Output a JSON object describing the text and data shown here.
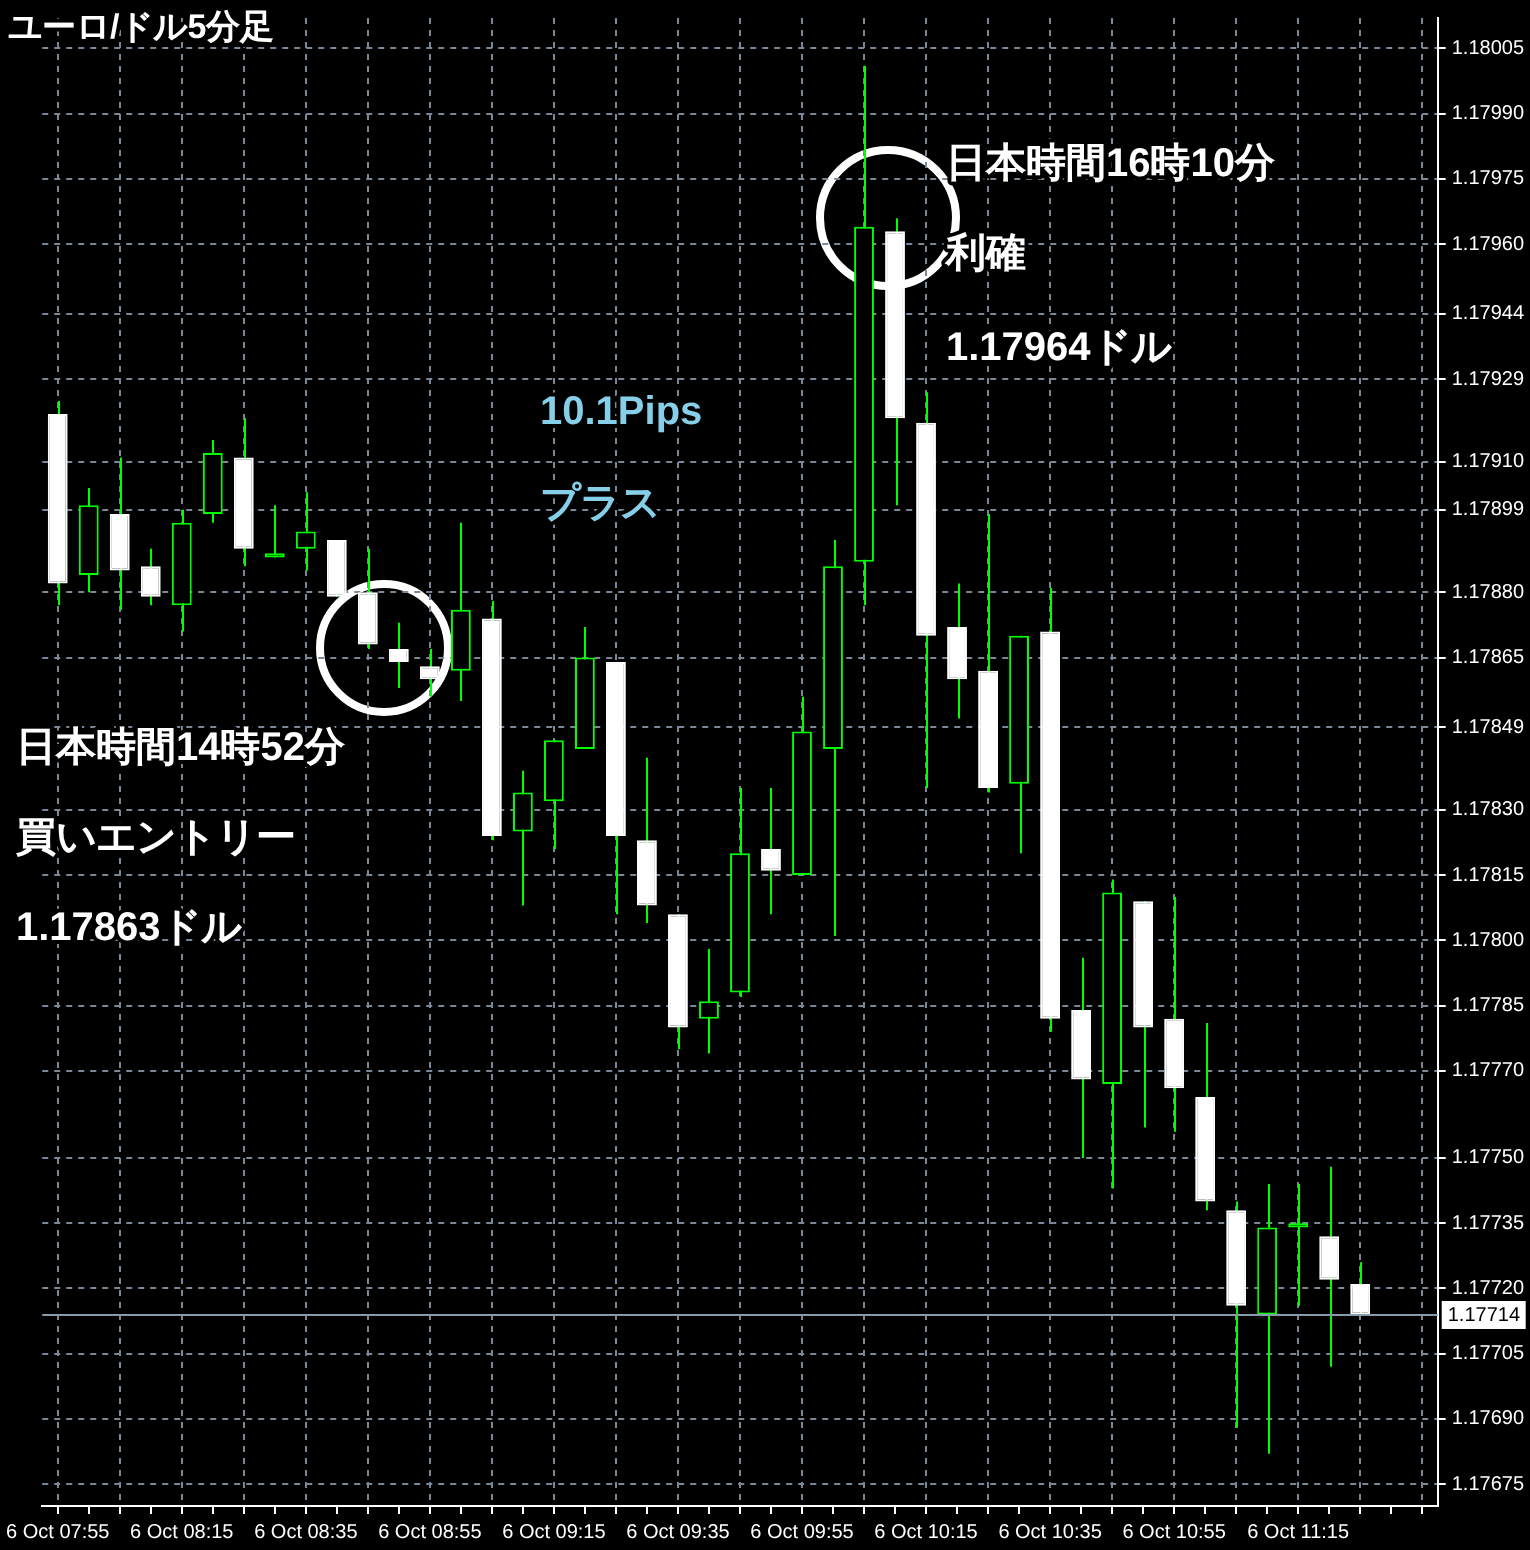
{
  "chart_data": {
    "type": "candlestick",
    "title": "ユーロ/ドル5分足",
    "categories": [
      "6 Oct 07:55",
      null,
      null,
      null,
      "6 Oct 08:15",
      null,
      null,
      null,
      "6 Oct 08:35",
      null,
      null,
      null,
      "6 Oct 08:55",
      null,
      null,
      null,
      "6 Oct 09:15",
      null,
      null,
      null,
      "6 Oct 09:35",
      null,
      null,
      null,
      "6 Oct 09:55",
      null,
      null,
      null,
      "6 Oct 10:15",
      null,
      null,
      null,
      "6 Oct 10:35",
      null,
      null,
      null,
      "6 Oct 10:55",
      null,
      null,
      null,
      "6 Oct 11:15",
      null,
      null
    ],
    "ohlc": [
      [
        1.17921,
        1.17924,
        1.17877,
        1.17882
      ],
      [
        1.17884,
        1.17904,
        1.1788,
        1.179
      ],
      [
        1.17898,
        1.17911,
        1.17876,
        1.17885
      ],
      [
        1.17886,
        1.1789,
        1.17877,
        1.17879
      ],
      [
        1.17877,
        1.17899,
        1.17871,
        1.17896
      ],
      [
        1.17898,
        1.17915,
        1.17896,
        1.17912
      ],
      [
        1.17911,
        1.1792,
        1.17886,
        1.1789
      ],
      [
        1.17888,
        1.179,
        1.17888,
        1.17889
      ],
      [
        1.1789,
        1.17903,
        1.17885,
        1.17894
      ],
      [
        1.17892,
        1.17892,
        1.17879,
        1.17879
      ],
      [
        1.1788,
        1.1789,
        1.17867,
        1.17868
      ],
      [
        1.17867,
        1.17873,
        1.17858,
        1.17864
      ],
      [
        1.17863,
        1.17867,
        1.17856,
        1.1786
      ],
      [
        1.17862,
        1.17896,
        1.17855,
        1.17876
      ],
      [
        1.17874,
        1.17878,
        1.17823,
        1.17824
      ],
      [
        1.17825,
        1.17839,
        1.17808,
        1.17834
      ],
      [
        1.17832,
        1.17846,
        1.17821,
        1.17846
      ],
      [
        1.17844,
        1.17872,
        1.17844,
        1.17865
      ],
      [
        1.17864,
        1.17864,
        1.17806,
        1.17824
      ],
      [
        1.17823,
        1.17842,
        1.17804,
        1.17808
      ],
      [
        1.17806,
        1.17806,
        1.17775,
        1.1778
      ],
      [
        1.17782,
        1.17798,
        1.17774,
        1.17786
      ],
      [
        1.17788,
        1.17835,
        1.17787,
        1.1782
      ],
      [
        1.17821,
        1.17835,
        1.17806,
        1.17816
      ],
      [
        1.17815,
        1.17856,
        1.17815,
        1.17848
      ],
      [
        1.17844,
        1.17892,
        1.17801,
        1.17886
      ],
      [
        1.17887,
        1.18001,
        1.17877,
        1.17964
      ],
      [
        1.17963,
        1.17966,
        1.179,
        1.1792
      ],
      [
        1.17919,
        1.17926,
        1.17835,
        1.1787
      ],
      [
        1.17872,
        1.17882,
        1.17851,
        1.1786
      ],
      [
        1.17862,
        1.17898,
        1.17834,
        1.17835
      ],
      [
        1.17836,
        1.1787,
        1.1782,
        1.1787
      ],
      [
        1.17871,
        1.17881,
        1.17779,
        1.17782
      ],
      [
        1.17784,
        1.17796,
        1.1775,
        1.17768
      ],
      [
        1.17767,
        1.17814,
        1.17743,
        1.17811
      ],
      [
        1.17809,
        1.17809,
        1.17757,
        1.1778
      ],
      [
        1.17782,
        1.1781,
        1.17756,
        1.17766
      ],
      [
        1.17764,
        1.17781,
        1.17738,
        1.1774
      ],
      [
        1.17738,
        1.1774,
        1.17688,
        1.17716
      ],
      [
        1.17714,
        1.17744,
        1.17682,
        1.17734
      ],
      [
        1.17734,
        1.17744,
        1.17716,
        1.17735
      ],
      [
        1.17732,
        1.17748,
        1.17702,
        1.17722
      ],
      [
        1.17721,
        1.17726,
        1.17714,
        1.17714
      ]
    ],
    "color": "#00ff00",
    "colors": [
      "#ffffff",
      "#00ff00",
      "#ffffff",
      "#ffffff",
      "#00ff00",
      "#00ff00",
      "#ffffff",
      "#00ff00",
      "#00ff00",
      "#ffffff",
      "#ffffff",
      "#ffffff",
      "#ffffff",
      "#00ff00",
      "#ffffff",
      "#00ff00",
      "#00ff00",
      "#00ff00",
      "#ffffff",
      "#ffffff",
      "#ffffff",
      "#00ff00",
      "#00ff00",
      "#ffffff",
      "#00ff00",
      "#00ff00",
      "#00ff00",
      "#ffffff",
      "#ffffff",
      "#ffffff",
      "#ffffff",
      "#00ff00",
      "#ffffff",
      "#ffffff",
      "#00ff00",
      "#ffffff",
      "#ffffff",
      "#ffffff",
      "#ffffff",
      "#00ff00",
      "#00ff00",
      "#ffffff",
      "#ffffff"
    ],
    "ylim": [
      1.1767,
      1.18012
    ],
    "yticks": [
      {
        "value": 1.18005,
        "label": "1.18005"
      },
      {
        "value": 1.1799,
        "label": "1.17990"
      },
      {
        "value": 1.17975,
        "label": "1.17975"
      },
      {
        "value": 1.1796,
        "label": "1.17960"
      },
      {
        "value": 1.17944,
        "label": "1.17944"
      },
      {
        "value": 1.17929,
        "label": "1.17929"
      },
      {
        "value": 1.1791,
        "label": "1.17910"
      },
      {
        "value": 1.17899,
        "label": "1.17899"
      },
      {
        "value": 1.1788,
        "label": "1.17880"
      },
      {
        "value": 1.17865,
        "label": "1.17865"
      },
      {
        "value": 1.17849,
        "label": "1.17849"
      },
      {
        "value": 1.1783,
        "label": "1.17830"
      },
      {
        "value": 1.17815,
        "label": "1.17815"
      },
      {
        "value": 1.178,
        "label": "1.17800"
      },
      {
        "value": 1.17785,
        "label": "1.17785"
      },
      {
        "value": 1.1777,
        "label": "1.17770"
      },
      {
        "value": 1.1775,
        "label": "1.17750"
      },
      {
        "value": 1.17735,
        "label": "1.17735"
      },
      {
        "value": 1.1772,
        "label": "1.17720"
      },
      {
        "value": 1.17705,
        "label": "1.17705"
      },
      {
        "value": 1.1769,
        "label": "1.17690"
      },
      {
        "value": 1.17675,
        "label": "1.17675"
      }
    ],
    "ref_lines": [
      {
        "axis": "y",
        "value": 1.17714,
        "label": "1.17714",
        "color": "#8899aa"
      }
    ],
    "annotations": [
      "日本時間14時52分",
      "買いエントリー",
      "1.17863ドル",
      "日本時間16時10分",
      "利確",
      "1.17964ドル",
      "10.1Pips",
      "プラス"
    ],
    "grid": true,
    "legend": false
  }
}
